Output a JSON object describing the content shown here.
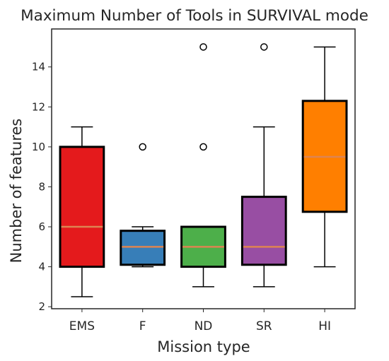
{
  "chart_data": {
    "type": "box",
    "title": "Maximum Number of Tools in SURVIVAL mode",
    "xlabel": "Mission type",
    "ylabel": "Number of features",
    "ylim": [
      1.9,
      15.9
    ],
    "yticks": [
      2,
      4,
      6,
      8,
      10,
      12,
      14
    ],
    "grid": false,
    "categories": [
      "EMS",
      "F",
      "ND",
      "SR",
      "HI"
    ],
    "boxes": [
      {
        "category": "EMS",
        "whisker_low": 2.5,
        "q1": 4.0,
        "median": 6.0,
        "q3": 10.0,
        "whisker_high": 11.0,
        "outliers": [],
        "color": "#e41a1c"
      },
      {
        "category": "F",
        "whisker_low": 4.0,
        "q1": 4.1,
        "median": 5.0,
        "q3": 5.8,
        "whisker_high": 6.0,
        "outliers": [
          10
        ],
        "color": "#377eb8"
      },
      {
        "category": "ND",
        "whisker_low": 3.0,
        "q1": 4.0,
        "median": 5.0,
        "q3": 6.0,
        "whisker_high": 6.0,
        "outliers": [
          10,
          15
        ],
        "color": "#4daf4a"
      },
      {
        "category": "SR",
        "whisker_low": 3.0,
        "q1": 4.1,
        "median": 5.0,
        "q3": 7.5,
        "whisker_high": 11.0,
        "outliers": [
          15
        ],
        "color": "#984ea3"
      },
      {
        "category": "HI",
        "whisker_low": 4.0,
        "q1": 6.75,
        "median": 9.5,
        "q3": 12.3,
        "whisker_high": 15.0,
        "outliers": [],
        "color": "#ff7f00"
      }
    ],
    "median_color": "#dd8452",
    "box_edge_color": "#000000"
  }
}
